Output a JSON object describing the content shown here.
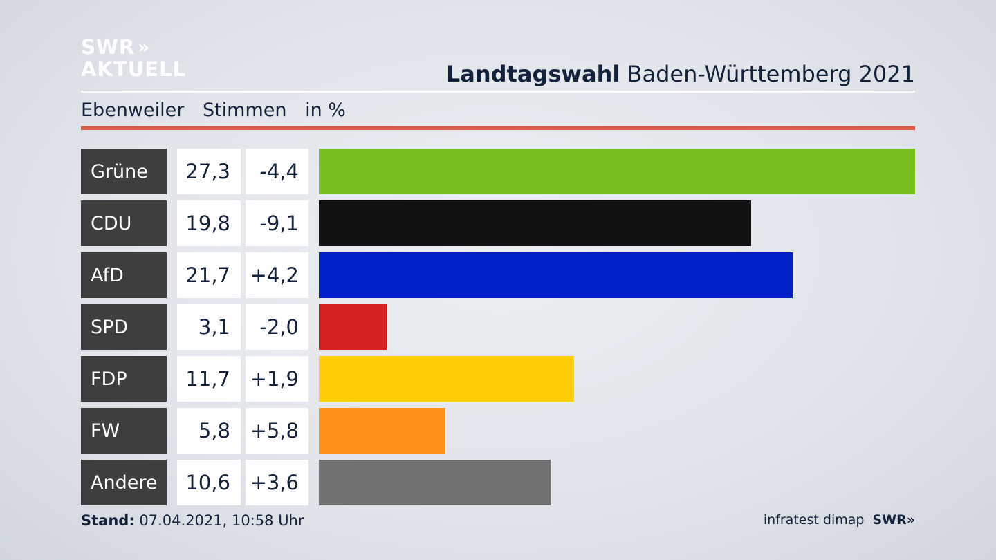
{
  "logo": {
    "line1": "SWR",
    "chevrons": "»",
    "line2": "AKTUELL"
  },
  "header": {
    "title_bold": "Landtagswahl",
    "title_rest": "Baden-Württemberg 2021"
  },
  "subheader": {
    "place": "Ebenweiler",
    "measure": "Stimmen",
    "unit": "in %"
  },
  "colors": {
    "accent_line": "#d95a45",
    "label_bg": "#3e3e3e"
  },
  "chart_data": {
    "type": "bar",
    "orientation": "horizontal",
    "xlim": [
      0,
      27.3
    ],
    "rows": [
      {
        "party": "Grüne",
        "share": 27.3,
        "share_label": "27,3",
        "diff_label": "-4,4",
        "color": "#78be1e"
      },
      {
        "party": "CDU",
        "share": 19.8,
        "share_label": "19,8",
        "diff_label": "-9,1",
        "color": "#121212"
      },
      {
        "party": "AfD",
        "share": 21.7,
        "share_label": "21,7",
        "diff_label": "+4,2",
        "color": "#0020c8"
      },
      {
        "party": "SPD",
        "share": 3.1,
        "share_label": "3,1",
        "diff_label": "-2,0",
        "color": "#d52121"
      },
      {
        "party": "FDP",
        "share": 11.7,
        "share_label": "11,7",
        "diff_label": "+1,9",
        "color": "#ffcc08"
      },
      {
        "party": "FW",
        "share": 5.8,
        "share_label": "5,8",
        "diff_label": "+5,8",
        "color": "#ff8f18"
      },
      {
        "party": "Andere",
        "share": 10.6,
        "share_label": "10,6",
        "diff_label": "+3,6",
        "color": "#717171"
      }
    ]
  },
  "footer": {
    "stand_label": "Stand:",
    "stand_value": "07.04.2021, 10:58 Uhr",
    "source": "infratest dimap",
    "brand": "SWR",
    "brand_chevrons": "»"
  }
}
